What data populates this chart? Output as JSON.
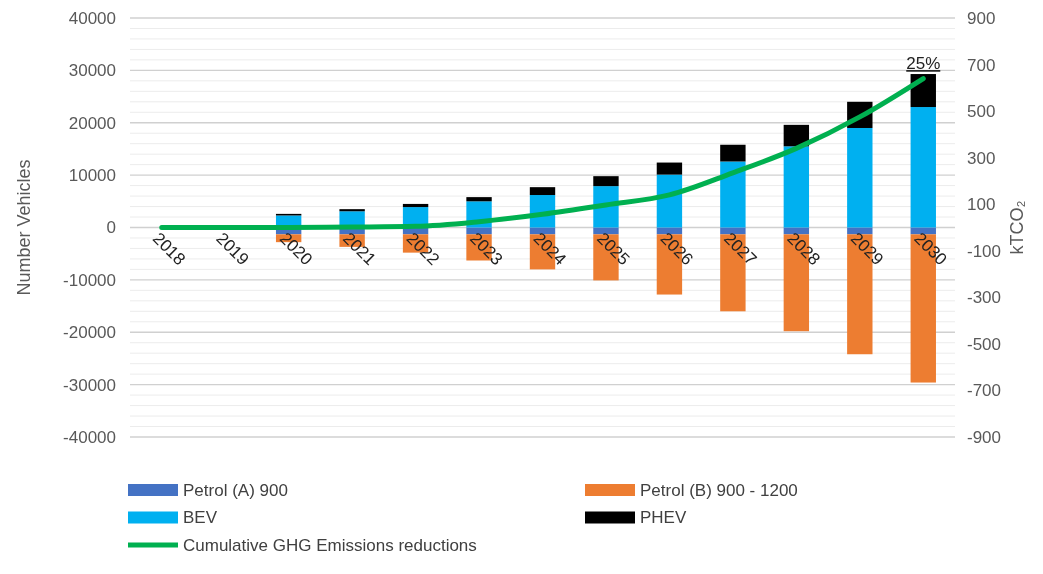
{
  "chart_data": {
    "type": "bar",
    "stacked": true,
    "categories": [
      "2018",
      "2019",
      "2020",
      "2021",
      "2022",
      "2023",
      "2024",
      "2025",
      "2026",
      "2027",
      "2028",
      "2029",
      "2030"
    ],
    "series": [
      {
        "name": "Petrol (A) 900",
        "color": "#4472c4",
        "values": [
          null,
          null,
          -1300,
          -1300,
          -1300,
          -1300,
          -1300,
          -1300,
          -1300,
          -1300,
          -1300,
          -1300,
          -1300
        ]
      },
      {
        "name": "Petrol (B) 900 - 1200",
        "color": "#ed7d31",
        "values": [
          null,
          null,
          -1500,
          -2400,
          -3500,
          -5000,
          -6700,
          -8800,
          -11500,
          -14700,
          -18500,
          -22900,
          -28300
        ]
      },
      {
        "name": "BEV",
        "color": "#00b0f0",
        "values": [
          null,
          null,
          2300,
          3100,
          3900,
          5000,
          6200,
          7900,
          10100,
          12600,
          15500,
          19000,
          23000
        ]
      },
      {
        "name": "PHEV",
        "color": "#000000",
        "values": [
          null,
          null,
          300,
          400,
          600,
          800,
          1500,
          1900,
          2300,
          3200,
          4100,
          5000,
          6300
        ]
      },
      {
        "name": "Cumulative GHG Emissions reductions",
        "type": "line",
        "axis": "y2",
        "color": "#00b050",
        "values": [
          0,
          0,
          0,
          2,
          5,
          25,
          57,
          97,
          140,
          235,
          340,
          475,
          640
        ]
      }
    ],
    "ylabel": "Number Vehicles",
    "y2label": "kTCO₂",
    "ylim": [
      -40000,
      40000
    ],
    "yticks": [
      -40000,
      -30000,
      -20000,
      -10000,
      0,
      10000,
      20000,
      30000,
      40000
    ],
    "y2lim": [
      -900,
      900
    ],
    "y2ticks": [
      -900,
      -700,
      -500,
      -300,
      -100,
      100,
      300,
      500,
      700,
      900
    ],
    "annotations": [
      {
        "text": "25%",
        "x": "2030",
        "y": 29300
      }
    ],
    "grid": true,
    "legend": "bottom"
  }
}
